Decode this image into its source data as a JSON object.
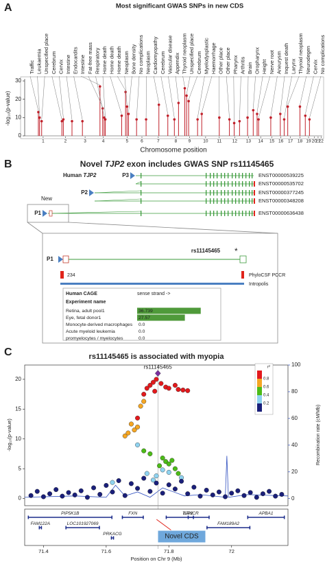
{
  "chart_data": [
    {
      "type": "lollipop",
      "label": "A",
      "title": "Most significant GWAS SNPs in new CDS",
      "ylabel": "-log₁₀(p-value)",
      "xlabel": "Chromosome position",
      "color": "#c0202a",
      "ylim": [
        0,
        30
      ],
      "yticks": [
        0,
        10,
        20,
        30
      ],
      "xlim": [
        0,
        100
      ],
      "xticks": [
        {
          "value": 6.2,
          "label": "1"
        },
        {
          "value": 13.7,
          "label": "2"
        },
        {
          "value": 20.3,
          "label": "3"
        },
        {
          "value": 26.4,
          "label": "4"
        },
        {
          "value": 34.4,
          "label": "5"
        },
        {
          "value": 39.4,
          "label": "6"
        },
        {
          "value": 44.9,
          "label": "7"
        },
        {
          "value": 50.8,
          "label": "8"
        },
        {
          "value": 55.4,
          "label": "9"
        },
        {
          "value": 60.8,
          "label": "10"
        },
        {
          "value": 65.4,
          "label": "11"
        },
        {
          "value": 70.6,
          "label": "12"
        },
        {
          "value": 75.2,
          "label": "13"
        },
        {
          "value": 79.3,
          "label": "14"
        },
        {
          "value": 83.1,
          "label": "15"
        },
        {
          "value": 86.1,
          "label": "16"
        },
        {
          "value": 89.3,
          "label": "17"
        },
        {
          "value": 92.5,
          "label": "18"
        },
        {
          "value": 95.4,
          "label": "19"
        },
        {
          "value": 97.3,
          "label": "20"
        },
        {
          "value": 98.6,
          "label": "21"
        },
        {
          "value": 99.6,
          "label": "22"
        }
      ],
      "snps": [
        {
          "label": "Traffic",
          "x": 4.6,
          "value": 13
        },
        {
          "label": "Leukaemia",
          "x": 5.0,
          "value": 10
        },
        {
          "label": "Unspecified place",
          "x": 5.7,
          "value": 8
        },
        {
          "label": "Cerebrum",
          "x": 12.5,
          "value": 8
        },
        {
          "label": "Cervix",
          "x": 13.0,
          "value": 9
        },
        {
          "label": "Intestine",
          "x": 15.9,
          "value": 8
        },
        {
          "label": "Endocardits",
          "x": 19.4,
          "value": 8
        },
        {
          "label": "Intestine",
          "x": 25.3,
          "value": 27
        },
        {
          "label": "Fat-free mass",
          "x": 26.2,
          "value": 15
        },
        {
          "label": "Respiratory",
          "x": 26.7,
          "value": 10
        },
        {
          "label": "Home death",
          "x": 27.1,
          "value": 9
        },
        {
          "label": "Home death",
          "x": 32.6,
          "value": 11
        },
        {
          "label": "Home death",
          "x": 33.9,
          "value": 24
        },
        {
          "label": "Neoplasm",
          "x": 34.4,
          "value": 16
        },
        {
          "label": "Bone density",
          "x": 34.9,
          "value": 12
        },
        {
          "label": "No complications",
          "x": 37.6,
          "value": 9
        },
        {
          "label": "Neoplasm",
          "x": 40.8,
          "value": 9
        },
        {
          "label": "Cardiomyopathy",
          "x": 45.1,
          "value": 17
        },
        {
          "label": "Cerebrum",
          "x": 48.1,
          "value": 11
        },
        {
          "label": "Vascular disease",
          "x": 50.3,
          "value": 9
        },
        {
          "label": "Appendix",
          "x": 51.7,
          "value": 18
        },
        {
          "label": "Thyroid neoplasm",
          "x": 53.8,
          "value": 26
        },
        {
          "label": "Unspecified place",
          "x": 54.4,
          "value": 22
        },
        {
          "label": "Cerebrum",
          "x": 55.1,
          "value": 19
        },
        {
          "label": "Myelodysplastic",
          "x": 58.1,
          "value": 9
        },
        {
          "label": "Haemorrhage",
          "x": 59.5,
          "value": 12
        },
        {
          "label": "Other place",
          "x": 65.4,
          "value": 10
        },
        {
          "label": "Other place",
          "x": 68.8,
          "value": 9
        },
        {
          "label": "Pharynx",
          "x": 70.4,
          "value": 7
        },
        {
          "label": "Arthritis",
          "x": 72.2,
          "value": 8
        },
        {
          "label": "Brain",
          "x": 74.9,
          "value": 10
        },
        {
          "label": "Oropharynx",
          "x": 76.8,
          "value": 14
        },
        {
          "label": "Height",
          "x": 78.1,
          "value": 12
        },
        {
          "label": "Nerve root",
          "x": 78.6,
          "value": 9
        },
        {
          "label": "Aneurysm",
          "x": 82.7,
          "value": 10
        },
        {
          "label": "Inquest death",
          "x": 85.9,
          "value": 12
        },
        {
          "label": "Larynx",
          "x": 87.2,
          "value": 9
        },
        {
          "label": "Thyroid neoplasm",
          "x": 88.4,
          "value": 16
        },
        {
          "label": "Neurodegen",
          "x": 92.5,
          "value": 16
        },
        {
          "label": "Cervix",
          "x": 94.3,
          "value": 11
        },
        {
          "label": "No complications",
          "x": 95.7,
          "value": 9
        }
      ]
    },
    {
      "type": "scatter",
      "label": "C",
      "title": "rs11145465 is associated with myopia",
      "ylabel": "-log₁₀(p-value)",
      "y2label": "Recombination rate (cM/Mb)",
      "xlabel": "Position on Chr 9 (Mb)",
      "xlim": [
        71.34,
        72.18
      ],
      "xticks": [
        71.4,
        71.6,
        71.8,
        72
      ],
      "ylim": [
        -1.2,
        22.4
      ],
      "yticks": [
        0,
        5,
        10,
        15,
        20
      ],
      "y2lim": [
        -5.3,
        100
      ],
      "y2ticks": [
        0,
        20,
        40,
        60,
        80,
        100
      ],
      "legend": {
        "title": "r²",
        "ticks": [
          0.2,
          0.4,
          0.6,
          0.8
        ],
        "colors": [
          "#1a1f7a",
          "#8fd3f0",
          "#4cbb17",
          "#f5a623",
          "#e3191c"
        ]
      },
      "lead": {
        "label": "rs11145465",
        "x": 71.765,
        "value": 21.0,
        "color": "#7b2fa0"
      },
      "points": {
        "x": [
          71.72,
          71.73,
          71.74,
          71.75,
          71.76,
          71.775,
          71.79,
          71.8,
          71.82,
          71.83,
          71.845,
          71.86,
          71.7,
          71.755,
          71.68,
          71.69,
          71.7,
          71.71,
          71.72,
          71.66,
          71.67,
          71.77,
          71.78,
          71.79,
          71.8,
          71.81,
          71.82,
          71.83,
          71.72,
          71.74,
          71.7,
          71.73,
          71.75,
          71.76,
          71.78,
          71.8,
          71.84,
          71.62,
          71.36,
          71.38,
          71.4,
          71.42,
          71.44,
          71.46,
          71.48,
          71.5,
          71.52,
          71.54,
          71.56,
          71.58,
          71.6,
          71.62,
          71.64,
          71.66,
          71.68,
          71.7,
          71.72,
          71.74,
          71.76,
          71.78,
          71.8,
          71.82,
          71.84,
          71.86,
          71.88,
          71.9,
          71.92,
          71.94,
          71.96,
          71.98,
          72.0,
          72.02,
          72.04,
          72.06,
          72.08,
          72.1,
          72.12,
          72.14,
          72.16
        ],
        "values": [
          17.5,
          18.5,
          19,
          19.5,
          20,
          19.3,
          18.7,
          18.5,
          19,
          18.3,
          18.2,
          18.1,
          13.5,
          18,
          12.5,
          11.5,
          12,
          15.5,
          16.3,
          10.5,
          11,
          5.5,
          6.8,
          6.2,
          5.8,
          6.4,
          5,
          4.2,
          8,
          7.5,
          9,
          4.2,
          3.1,
          3.8,
          4.8,
          4.4,
          3.5,
          2.7,
          0.5,
          1.2,
          0.3,
          0.8,
          1.5,
          0.4,
          1.0,
          0.6,
          1.3,
          0.2,
          1.8,
          0.7,
          2.2,
          1.1,
          3.0,
          0.5,
          2.5,
          1.7,
          3.4,
          1.2,
          2.6,
          0.9,
          2.3,
          1.6,
          2.9,
          0.8,
          1.9,
          0.4,
          1.4,
          0.6,
          1.1,
          0.3,
          0.9,
          1.3,
          0.5,
          1.0,
          0.2,
          0.8,
          1.2,
          0.4,
          0.7
        ],
        "r2": [
          0.9,
          0.9,
          0.9,
          0.9,
          0.9,
          0.9,
          0.9,
          0.9,
          0.9,
          0.9,
          0.9,
          0.9,
          0.9,
          0.9,
          0.7,
          0.7,
          0.7,
          0.7,
          0.7,
          0.7,
          0.7,
          0.5,
          0.5,
          0.5,
          0.5,
          0.5,
          0.5,
          0.5,
          0.5,
          0.5,
          0.3,
          0.3,
          0.3,
          0.3,
          0.3,
          0.3,
          0.3,
          0.3,
          0.1,
          0.1,
          0.1,
          0.1,
          0.1,
          0.1,
          0.1,
          0.1,
          0.1,
          0.1,
          0.1,
          0.1,
          0.1,
          0.1,
          0.1,
          0.1,
          0.1,
          0.1,
          0.1,
          0.1,
          0.1,
          0.1,
          0.1,
          0.1,
          0.1,
          0.1,
          0.1,
          0.1,
          0.1,
          0.1,
          0.1,
          0.1,
          0.1,
          0.1,
          0.1,
          0.1,
          0.1,
          0.1,
          0.1,
          0.1,
          0.1
        ]
      },
      "recombination": {
        "color": "#3050c0",
        "x": [
          71.34,
          71.5,
          71.6,
          71.63,
          71.66,
          71.7,
          71.74,
          71.78,
          71.85,
          71.9,
          71.98,
          71.985,
          71.99,
          72.05,
          72.18
        ],
        "values": [
          1,
          2,
          1,
          10,
          2,
          5,
          1,
          8,
          2,
          3,
          1,
          32,
          1,
          3,
          2
        ]
      },
      "genes": [
        {
          "name": "PIP5K1B",
          "start": 71.35,
          "end": 71.62
        },
        {
          "name": "FXN",
          "start": 71.65,
          "end": 71.72
        },
        {
          "name": "TJP2",
          "start": 71.79,
          "end": 71.93
        },
        {
          "name": "BANCR",
          "start": 71.86,
          "end": 71.88
        },
        {
          "name": "APBA1",
          "start": 72.05,
          "end": 72.17
        },
        {
          "name": "FAM122A",
          "start": 71.385,
          "end": 71.395
        },
        {
          "name": "LOC101927069",
          "start": 71.47,
          "end": 71.58
        },
        {
          "name": "FAM189A2",
          "start": 71.92,
          "end": 72.06
        },
        {
          "name": "PRKACG",
          "start": 71.615,
          "end": 71.625
        }
      ],
      "callout": "Novel CDS"
    }
  ],
  "diagram": {
    "label": "B",
    "title_parts": [
      "Novel ",
      "TJP2",
      " exon includes GWAS SNP rs11145465"
    ],
    "gene_parts": [
      "Human ",
      "TJP2"
    ],
    "promoters": [
      "P3",
      "P2",
      "P1"
    ],
    "new_label": "New",
    "transcripts": [
      "ENST00000539225",
      "ENST00000535702",
      "ENST00000377245",
      "ENST00000348208",
      "ENST00000636438"
    ],
    "zoom": {
      "promoter": "P1",
      "snp": "rs11145465",
      "star": "*",
      "count": "234",
      "tracks": [
        "PhyloCSF PCCR",
        "Intropolis"
      ]
    },
    "cage": {
      "header": "Human CAGE",
      "strand": "sense strand ->",
      "column": "Experiment name",
      "xlim": [
        0,
        40
      ],
      "rows": [
        "Retina, adult pool1",
        "Eye, fetal donor1",
        "Monocyte-derived macrophages",
        "Acute myeloid leukemia",
        "promyelocytes / myelocytes"
      ],
      "values": [
        36.739,
        27.57,
        0,
        0,
        0
      ],
      "value_labels": [
        "36.739",
        "27.57",
        "0.0",
        "0.0",
        "0.0"
      ]
    }
  }
}
